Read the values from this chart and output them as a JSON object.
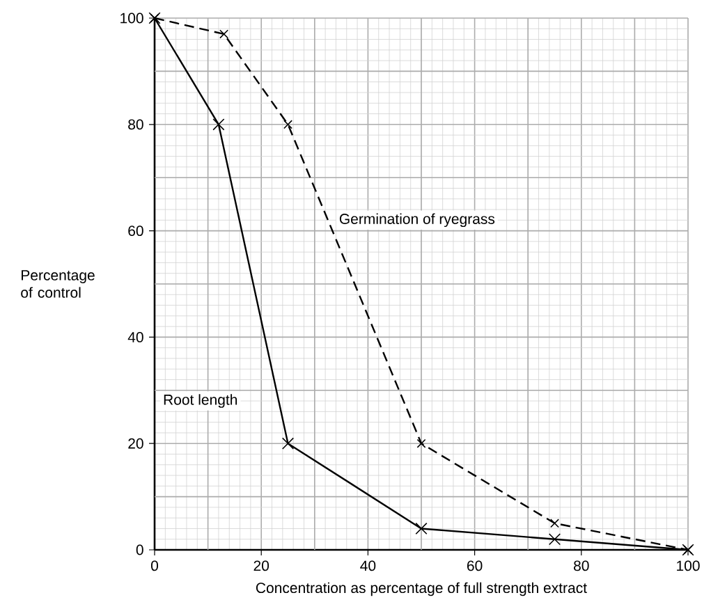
{
  "chart_data": {
    "type": "line",
    "xlabel": "Concentration as percentage of full strength extract",
    "ylabel": "Percentage of control",
    "xlim": [
      0,
      100
    ],
    "ylim": [
      0,
      100
    ],
    "xticks": [
      0,
      20,
      40,
      60,
      80,
      100
    ],
    "yticks": [
      0,
      20,
      40,
      60,
      80,
      100
    ],
    "grid": true,
    "marker": "cross",
    "series": [
      {
        "name": "Root length",
        "color": "#000000",
        "line_style": "solid",
        "x": [
          0,
          12,
          25,
          50,
          75,
          100
        ],
        "values": [
          100,
          80,
          20,
          4,
          2,
          0
        ]
      },
      {
        "name": "Germination of ryegrass",
        "color": "#000000",
        "line_style": "dashed",
        "x": [
          0,
          13,
          25,
          50,
          75,
          100
        ],
        "values": [
          100,
          97,
          80,
          20,
          5,
          0
        ]
      }
    ]
  }
}
